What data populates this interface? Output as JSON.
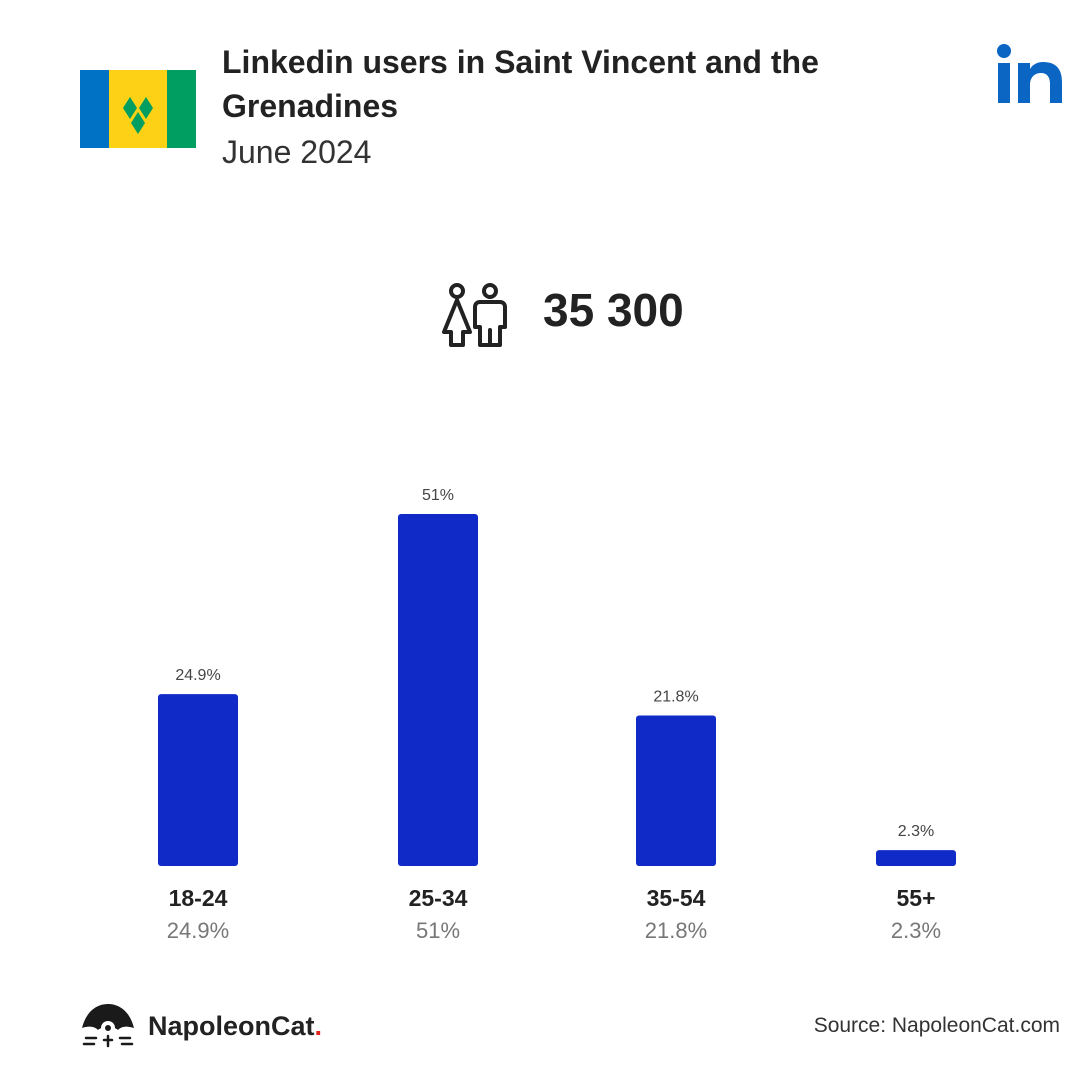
{
  "header": {
    "title": "Linkedin users in Saint Vincent and the Grenadines",
    "subtitle": "June 2024"
  },
  "total": {
    "value": "35 300",
    "icon": "users-icon"
  },
  "chart_data": {
    "type": "bar",
    "categories": [
      "18-24",
      "25-34",
      "35-54",
      "55+"
    ],
    "values": [
      24.9,
      51,
      21.8,
      2.3
    ],
    "value_labels": [
      "24.9%",
      "51%",
      "21.8%",
      "2.3%"
    ],
    "ylim": [
      0,
      51
    ],
    "grid": false,
    "bar_color": "#0f2ac6"
  },
  "footer": {
    "brand": "NapoleonCat",
    "brand_dot": ".",
    "source": "Source: NapoleonCat.com"
  },
  "colors": {
    "linkedin_blue": "#0a66c2",
    "flag_blue": "#0072c6",
    "flag_yellow": "#fcd116",
    "flag_green": "#009e60"
  }
}
